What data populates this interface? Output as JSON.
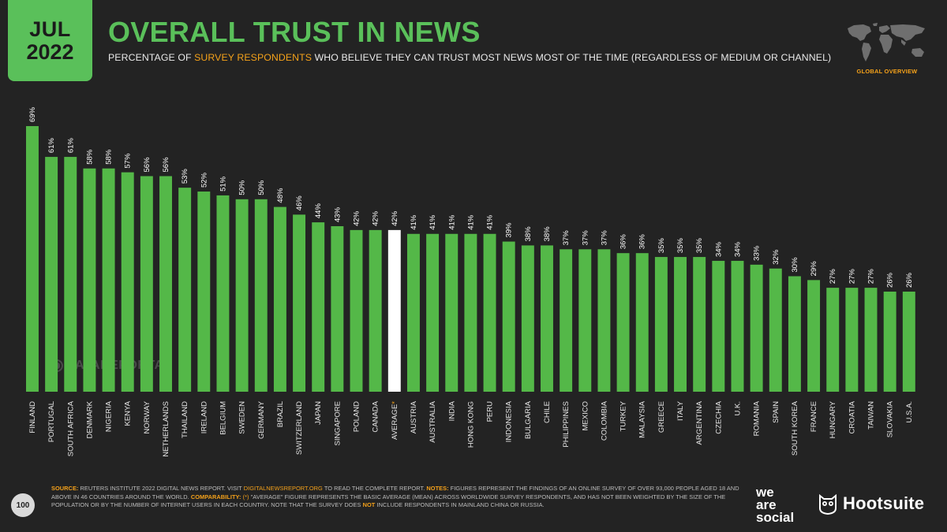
{
  "badge": {
    "month": "JUL",
    "year": "2022"
  },
  "header": {
    "title": "OVERALL TRUST IN NEWS",
    "subtitle_pre": "PERCENTAGE OF ",
    "subtitle_highlight": "SURVEY RESPONDENTS",
    "subtitle_post": " WHO BELIEVE THEY CAN TRUST MOST NEWS MOST OF THE TIME (REGARDLESS OF MEDIUM OR CHANNEL)",
    "section_label": "GLOBAL OVERVIEW"
  },
  "watermark": "DATAREPORTAL",
  "page_number": "100",
  "footnote": {
    "source_label": "SOURCE:",
    "source_text_1": " REUTERS INSTITUTE 2022 DIGITAL NEWS REPORT. VISIT ",
    "source_link": "DIGITALNEWSREPORT.ORG",
    "source_text_2": " TO READ THE COMPLETE REPORT. ",
    "notes_label": "NOTES:",
    "notes_text": " FIGURES REPRESENT THE FINDINGS OF AN ONLINE SURVEY OF OVER 93,000 PEOPLE AGED 18 AND ABOVE IN 46 COUNTRIES AROUND THE WORLD. ",
    "comparability_label": "COMPARABILITY:",
    "comparability_mark": " (*) ",
    "comparability_text_1": "\"AVERAGE\" FIGURE REPRESENTS THE BASIC AVERAGE (MEAN) ACROSS WORLDWIDE SURVEY RESPONDENTS, AND HAS NOT BEEN WEIGHTED BY THE SIZE OF THE POPULATION OR BY THE NUMBER OF INTERNET USERS IN EACH COUNTRY. NOTE THAT THE SURVEY DOES ",
    "comparability_not": "NOT",
    "comparability_text_2": " INCLUDE RESPONDENTS IN MAINLAND CHINA OR RUSSIA."
  },
  "brands": {
    "we_are_social": [
      "we",
      "are",
      "social"
    ],
    "hootsuite": "Hootsuite"
  },
  "colors": {
    "bar": "#54b848",
    "highlight_bar": "#ffffff",
    "accent": "#f4a11a",
    "title": "#5ac05a",
    "background": "#232323"
  },
  "chart_data": {
    "type": "bar",
    "title": "OVERALL TRUST IN NEWS",
    "xlabel": "",
    "ylabel": "",
    "ylim": [
      0,
      69
    ],
    "grid": false,
    "value_suffix": "%",
    "highlight_index": 19,
    "highlight_marker": "*",
    "categories": [
      "FINLAND",
      "PORTUGAL",
      "SOUTH AFRICA",
      "DENMARK",
      "NIGERIA",
      "KENYA",
      "NORWAY",
      "NETHERLANDS",
      "THAILAND",
      "IRELAND",
      "BELGIUM",
      "SWEDEN",
      "GERMANY",
      "BRAZIL",
      "SWITZERLAND",
      "JAPAN",
      "SINGAPORE",
      "POLAND",
      "CANADA",
      "AVERAGE",
      "AUSTRIA",
      "AUSTRALIA",
      "INDIA",
      "HONG KONG",
      "PERU",
      "INDONESIA",
      "BULGARIA",
      "CHILE",
      "PHILIPPINES",
      "MEXICO",
      "COLOMBIA",
      "TURKEY",
      "MALAYSIA",
      "GREECE",
      "ITALY",
      "ARGENTINA",
      "CZECHIA",
      "U.K.",
      "ROMANIA",
      "SPAIN",
      "SOUTH KOREA",
      "FRANCE",
      "HUNGARY",
      "CROATIA",
      "TAIWAN",
      "SLOVAKIA",
      "U.S.A."
    ],
    "values": [
      69,
      61,
      61,
      58,
      58,
      57,
      56,
      56,
      53,
      52,
      51,
      50,
      50,
      48,
      46,
      44,
      43,
      42,
      42,
      42,
      41,
      41,
      41,
      41,
      41,
      39,
      38,
      38,
      37,
      37,
      37,
      36,
      36,
      35,
      35,
      35,
      34,
      34,
      33,
      32,
      30,
      29,
      27,
      27,
      27,
      26,
      26
    ]
  }
}
